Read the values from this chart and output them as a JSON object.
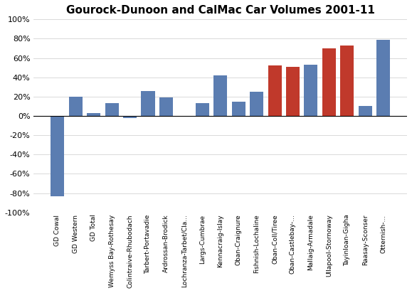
{
  "title": "Gourock-Dunoon and CalMac Car Volumes 2001-11",
  "categories": [
    "GD Cowal",
    "GD Western",
    "GD Total",
    "Wemyss Bay-Rothesay",
    "Colintraive-Rhubodach",
    "Tarbert-Portavadie",
    "Ardrossan-Brodick",
    "Lochranza-Tarbet/Cla...",
    "Largs-Cumbrae",
    "Kennacraig-Islay",
    "Oban-Craignure",
    "Fishnish-Lochaline",
    "Oban-Coll/Tiree",
    "Oban-Castlebay-...",
    "Mallaig-Armadale",
    "Ullapool-Stornoway",
    "Tayinloan-Gigha",
    "Raasay-Sconser",
    "Otternish-..."
  ],
  "values": [
    -83,
    20,
    3,
    13,
    -2,
    26,
    19,
    0,
    13,
    42,
    15,
    25,
    52,
    51,
    53,
    70,
    73,
    10,
    79
  ],
  "colors": [
    "#5B7DB1",
    "#5B7DB1",
    "#5B7DB1",
    "#5B7DB1",
    "#5B7DB1",
    "#5B7DB1",
    "#5B7DB1",
    "#5B7DB1",
    "#5B7DB1",
    "#5B7DB1",
    "#5B7DB1",
    "#5B7DB1",
    "#C0392B",
    "#C0392B",
    "#5B7DB1",
    "#C0392B",
    "#C0392B",
    "#5B7DB1",
    "#5B7DB1"
  ],
  "ylim": [
    -100,
    100
  ],
  "yticks": [
    -100,
    -80,
    -60,
    -40,
    -20,
    0,
    20,
    40,
    60,
    80,
    100
  ],
  "background_color": "#ffffff",
  "title_fontsize": 11,
  "bar_width": 0.75,
  "figsize": [
    5.79,
    4.12
  ],
  "dpi": 100
}
